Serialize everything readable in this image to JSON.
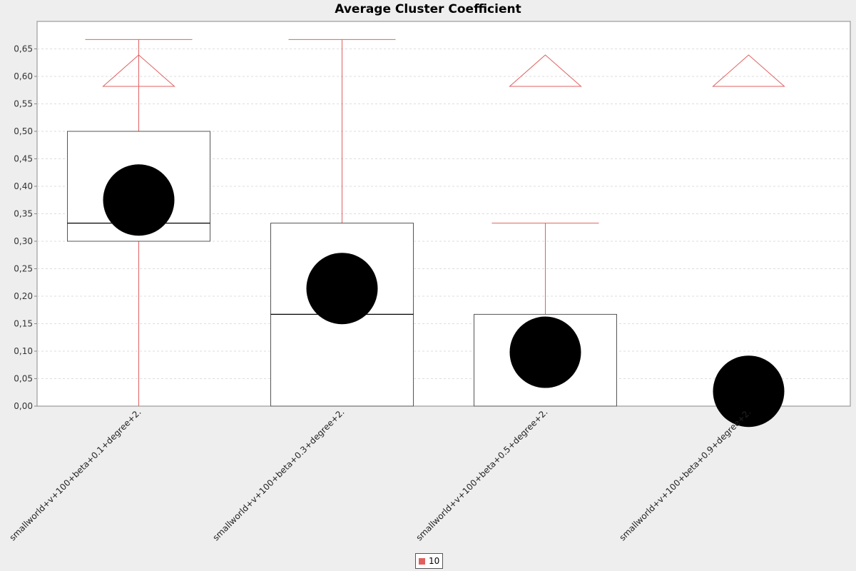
{
  "chart_data": {
    "type": "box",
    "title": "Average Cluster Coefficient",
    "xlabel": "",
    "ylabel": "",
    "ylim": [
      0,
      0.7
    ],
    "y_ticks": [
      "0,00",
      "0,05",
      "0,10",
      "0,15",
      "0,20",
      "0,25",
      "0,30",
      "0,35",
      "0,40",
      "0,45",
      "0,50",
      "0,55",
      "0,60",
      "0,65"
    ],
    "y_tick_values": [
      0,
      0.05,
      0.1,
      0.15,
      0.2,
      0.25,
      0.3,
      0.35,
      0.4,
      0.45,
      0.5,
      0.55,
      0.6,
      0.65
    ],
    "grid": true,
    "legend_position": "bottom",
    "categories": [
      "smallworld+v+100+beta+0.1+degree+2.",
      "smallworld+v+100+beta+0.3+degree+2.",
      "smallworld+v+100+beta+0.5+degree+2.",
      "smallworld+v+100+beta+0.9+degree+2."
    ],
    "series": [
      {
        "name": "10",
        "color": "#e06060",
        "boxes": [
          {
            "min": 0.0,
            "q1": 0.3,
            "median": 0.333,
            "q3": 0.5,
            "max": 0.667,
            "mean": 0.375,
            "outlier_marker": 0.6
          },
          {
            "min": 0.0,
            "q1": 0.0,
            "median": 0.167,
            "q3": 0.333,
            "max": 0.667,
            "mean": 0.214,
            "outlier_marker": null
          },
          {
            "min": 0.0,
            "q1": 0.0,
            "median": 0.0,
            "q3": 0.167,
            "max": 0.333,
            "mean": 0.098,
            "outlier_marker": 0.6
          },
          {
            "min": 0.0,
            "q1": 0.0,
            "median": 0.0,
            "q3": 0.0,
            "max": 0.0,
            "mean": 0.027,
            "outlier_marker": 0.6
          }
        ]
      }
    ]
  },
  "legend": {
    "label": "10",
    "color": "#e06060"
  }
}
